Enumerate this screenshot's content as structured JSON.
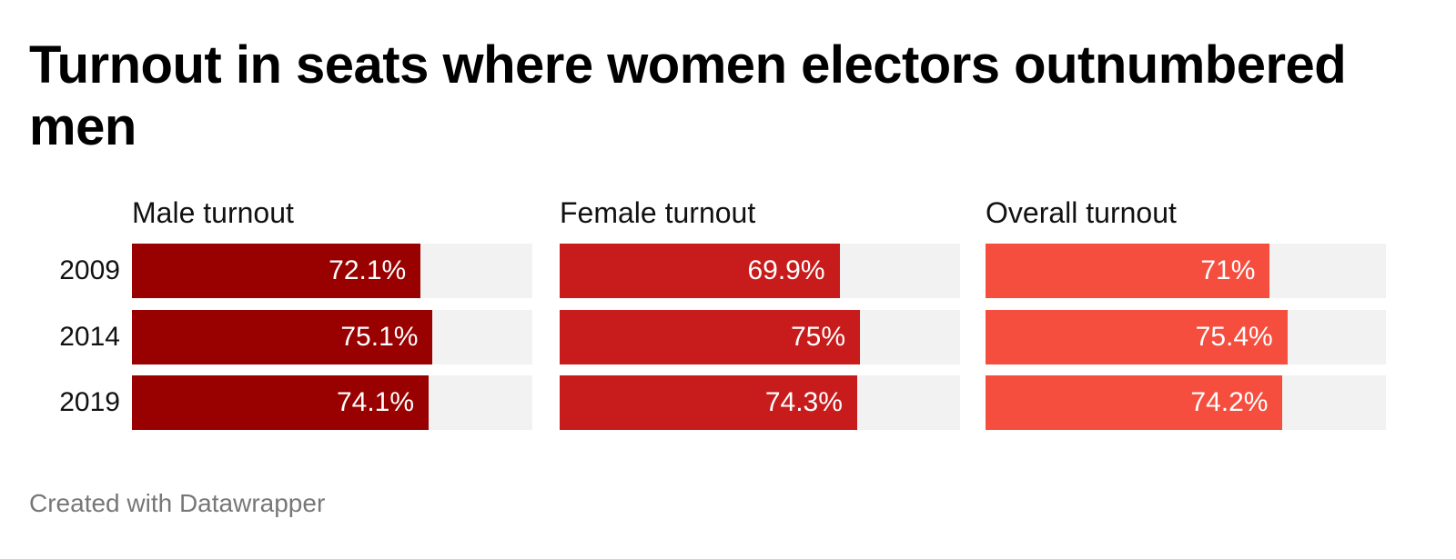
{
  "title": "Turnout in seats where women electors outnumbered men",
  "footer": "Created with Datawrapper",
  "chart_data": {
    "type": "bar",
    "orientation": "horizontal",
    "title": "Turnout in seats where women electors outnumbered men",
    "categories": [
      "2009",
      "2014",
      "2019"
    ],
    "xlim": [
      0,
      100
    ],
    "unit": "%",
    "grid": false,
    "legend": "none",
    "panels": [
      {
        "title": "Male turnout",
        "color": "#990000",
        "values": [
          72.1,
          75.1,
          74.1
        ],
        "labels": [
          "72.1%",
          "75.1%",
          "74.1%"
        ]
      },
      {
        "title": "Female turnout",
        "color": "#c81c1c",
        "values": [
          69.9,
          75,
          74.3
        ],
        "labels": [
          "69.9%",
          "75%",
          "74.3%"
        ]
      },
      {
        "title": "Overall turnout",
        "color": "#f54e3f",
        "values": [
          71,
          75.4,
          74.2
        ],
        "labels": [
          "71%",
          "75.4%",
          "74.2%"
        ]
      }
    ],
    "track_color": "#f2f2f2"
  }
}
